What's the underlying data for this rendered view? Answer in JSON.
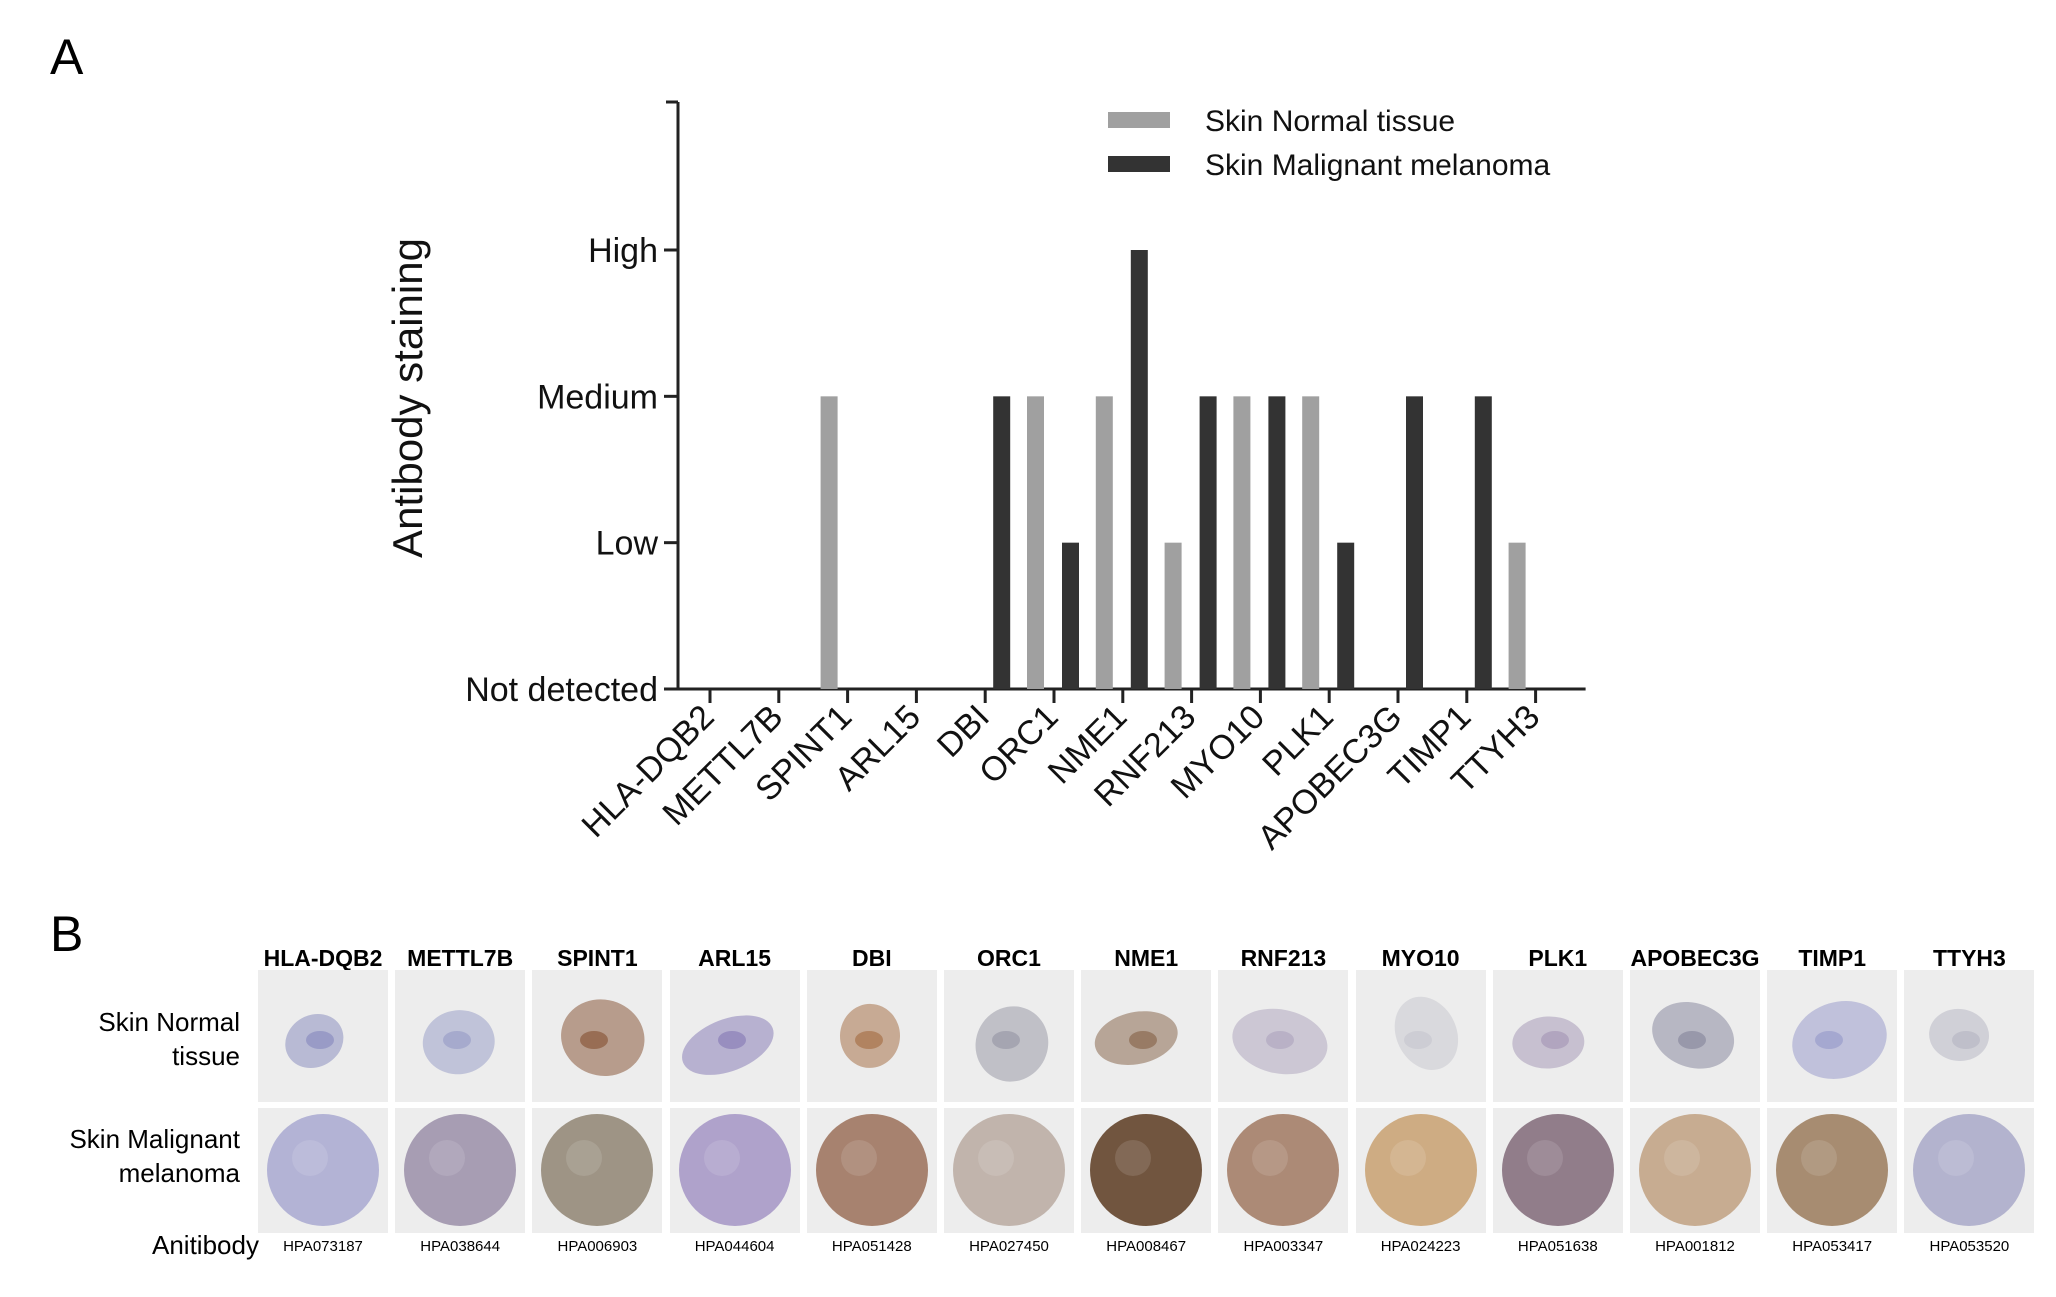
{
  "panel_a": {
    "letter": "A"
  },
  "panel_b": {
    "letter": "B",
    "row_labels": [
      "Skin Normal tissue",
      "Skin Malignant melanoma"
    ],
    "antibody_title": "Anitibody",
    "genes": [
      "HLA-DQB2",
      "METTL7B",
      "SPINT1",
      "ARL15",
      "DBI",
      "ORC1",
      "NME1",
      "RNF213",
      "MYO10",
      "PLK1",
      "APOBEC3G",
      "TIMP1",
      "TTYH3"
    ],
    "antibodies": [
      "HPA073187",
      "HPA038644",
      "HPA006903",
      "HPA044604",
      "HPA051428",
      "HPA027450",
      "HPA008467",
      "HPA003347",
      "HPA024223",
      "HPA051638",
      "HPA001812",
      "HPA053417",
      "HPA053520"
    ],
    "normal_stain_colors": [
      "#8c8fc0",
      "#9ba0c8",
      "#8a5a3c",
      "#8a7fb8",
      "#a8724a",
      "#9a9aa8",
      "#8a6a50",
      "#b0a8c0",
      "#c8c8d0",
      "#a89ab8",
      "#8a8aa0",
      "#9a9ccc",
      "#b8b8c4"
    ],
    "tumor_stain_colors": [
      "#a8a8d0",
      "#9a8ea8",
      "#8f8472",
      "#a394c4",
      "#9a6e58",
      "#b9a9a0",
      "#5a3a20",
      "#a07860",
      "#c8a070",
      "#806878",
      "#c0a080",
      "#9a7a5a",
      "#a8a8c8"
    ]
  },
  "chart_data": {
    "type": "bar",
    "categories": [
      "HLA-DQB2",
      "METTL7B",
      "SPINT1",
      "ARL15",
      "DBI",
      "ORC1",
      "NME1",
      "RNF213",
      "MYO10",
      "PLK1",
      "APOBEC3G",
      "TIMP1",
      "TTYH3"
    ],
    "series": [
      {
        "name": "Skin Normal tissue",
        "color": "#a0a0a0",
        "values": [
          0,
          0,
          2,
          0,
          0,
          2,
          2,
          1,
          2,
          2,
          0,
          0,
          1
        ]
      },
      {
        "name": "Skin Malignant melanoma",
        "color": "#333333",
        "values": [
          0,
          0,
          0,
          0,
          2,
          1,
          3,
          2,
          2,
          1,
          2,
          2,
          0
        ]
      }
    ],
    "ylabel": "Antibody staining",
    "xlabel": "",
    "y_ticks": [
      {
        "value": 0,
        "label": "Not detected"
      },
      {
        "value": 1,
        "label": "Low"
      },
      {
        "value": 2,
        "label": "Medium"
      },
      {
        "value": 3,
        "label": "High"
      }
    ],
    "ylim": [
      0,
      4
    ],
    "legend_position": "top-right",
    "grid": false
  }
}
